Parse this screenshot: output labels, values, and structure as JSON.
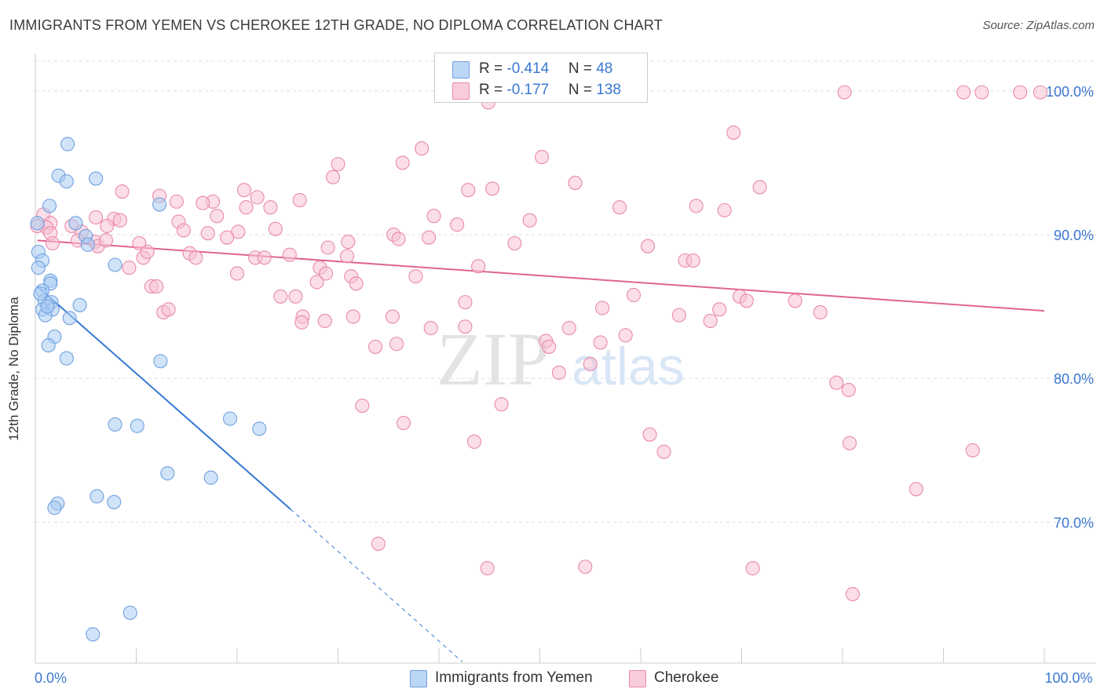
{
  "header": {
    "title": "IMMIGRANTS FROM YEMEN VS CHEROKEE 12TH GRADE, NO DIPLOMA CORRELATION CHART",
    "source": "Source: ZipAtlas.com"
  },
  "watermark": {
    "zip": "ZIP",
    "atlas": "atlas"
  },
  "legend": {
    "series1": {
      "r_label": "R = ",
      "r_value": "-0.414",
      "n_label": "N = ",
      "n_value": "48"
    },
    "series2": {
      "r_label": "R = ",
      "r_value": "-0.177",
      "n_label": "N = ",
      "n_value": "138"
    }
  },
  "colors": {
    "blue_fill": "#aaccf2",
    "blue_stroke": "#6fa0df",
    "blue_line": "#3579d3",
    "pink_fill": "#f8c3d4",
    "pink_stroke": "#e98aaa",
    "pink_line": "#e0658f",
    "axis_label": "#3b78d0",
    "grid": "#dddddd"
  },
  "chart_data": {
    "type": "scatter",
    "xlabel": "",
    "ylabel": "12th Grade, No Diploma",
    "xlim": [
      0,
      100
    ],
    "ylim": [
      60.2,
      102.5
    ],
    "x_tick_labels": [
      {
        "x": 0,
        "label": "0.0%"
      },
      {
        "x": 100,
        "label": "100.0%"
      }
    ],
    "y_tick_labels": [
      {
        "y": 70,
        "label": "70.0%"
      },
      {
        "y": 80,
        "label": "80.0%"
      },
      {
        "y": 90,
        "label": "90.0%"
      },
      {
        "y": 100,
        "label": "100.0%"
      }
    ],
    "series": [
      {
        "name": "Immigrants from Yemen",
        "color": "#6fa0df",
        "trend": {
          "x": [
            0.2,
            25.3
          ],
          "y": [
            86.4,
            70.9
          ]
        },
        "trend_dashed": {
          "x": [
            25.3,
            42.3
          ],
          "y": [
            70.9,
            60.3
          ]
        },
        "points": [
          [
            3.2,
            96.3
          ],
          [
            2.3,
            94.1
          ],
          [
            3.1,
            93.7
          ],
          [
            6.0,
            93.9
          ],
          [
            1.4,
            92.0
          ],
          [
            12.3,
            92.1
          ],
          [
            4.0,
            90.8
          ],
          [
            0.2,
            90.8
          ],
          [
            5.0,
            89.9
          ],
          [
            5.2,
            89.3
          ],
          [
            0.3,
            88.8
          ],
          [
            0.7,
            88.2
          ],
          [
            0.3,
            87.7
          ],
          [
            7.9,
            87.9
          ],
          [
            1.5,
            86.8
          ],
          [
            1.5,
            86.6
          ],
          [
            0.7,
            86.1
          ],
          [
            0.9,
            85.4
          ],
          [
            1.6,
            85.3
          ],
          [
            4.4,
            85.1
          ],
          [
            0.7,
            84.8
          ],
          [
            1.7,
            84.8
          ],
          [
            1.0,
            84.4
          ],
          [
            3.4,
            84.2
          ],
          [
            1.9,
            82.9
          ],
          [
            1.3,
            82.3
          ],
          [
            3.1,
            81.4
          ],
          [
            12.4,
            81.2
          ],
          [
            19.3,
            77.2
          ],
          [
            7.9,
            76.8
          ],
          [
            10.1,
            76.7
          ],
          [
            22.2,
            76.5
          ],
          [
            13.1,
            73.4
          ],
          [
            17.4,
            73.1
          ],
          [
            6.1,
            71.8
          ],
          [
            7.8,
            71.4
          ],
          [
            2.2,
            71.3
          ],
          [
            1.9,
            71.0
          ],
          [
            9.4,
            63.7
          ],
          [
            5.7,
            62.2
          ],
          [
            0.5,
            85.9
          ],
          [
            1.2,
            85.0
          ]
        ]
      },
      {
        "name": "Cherokee",
        "color": "#e98aaa",
        "trend": {
          "x": [
            0.2,
            100
          ],
          "y": [
            89.6,
            84.7
          ]
        },
        "points": [
          [
            46.7,
            99.9
          ],
          [
            49.2,
            99.9
          ],
          [
            53.9,
            99.9
          ],
          [
            80.2,
            99.9
          ],
          [
            92.0,
            99.9
          ],
          [
            93.8,
            99.9
          ],
          [
            97.6,
            99.9
          ],
          [
            99.6,
            99.9
          ],
          [
            69.2,
            97.1
          ],
          [
            38.3,
            96.0
          ],
          [
            50.2,
            95.4
          ],
          [
            36.4,
            95.0
          ],
          [
            30.0,
            94.9
          ],
          [
            29.5,
            94.0
          ],
          [
            53.5,
            93.6
          ],
          [
            71.8,
            93.3
          ],
          [
            45.3,
            93.2
          ],
          [
            42.9,
            93.1
          ],
          [
            8.6,
            93.0
          ],
          [
            20.7,
            93.1
          ],
          [
            12.3,
            92.7
          ],
          [
            17.6,
            92.3
          ],
          [
            22.0,
            92.6
          ],
          [
            26.2,
            92.4
          ],
          [
            14.0,
            92.3
          ],
          [
            16.6,
            92.2
          ],
          [
            20.9,
            91.9
          ],
          [
            23.3,
            91.9
          ],
          [
            57.9,
            91.9
          ],
          [
            65.5,
            92.0
          ],
          [
            68.3,
            91.7
          ],
          [
            0.8,
            91.4
          ],
          [
            6.0,
            91.2
          ],
          [
            7.8,
            91.1
          ],
          [
            8.4,
            91.0
          ],
          [
            14.2,
            90.9
          ],
          [
            18.0,
            91.3
          ],
          [
            39.5,
            91.3
          ],
          [
            49.0,
            91.0
          ],
          [
            41.8,
            90.7
          ],
          [
            1.5,
            90.8
          ],
          [
            1.1,
            90.5
          ],
          [
            3.6,
            90.6
          ],
          [
            7.1,
            90.6
          ],
          [
            0.2,
            90.6
          ],
          [
            1.5,
            90.1
          ],
          [
            4.6,
            90.2
          ],
          [
            14.7,
            90.3
          ],
          [
            17.1,
            90.1
          ],
          [
            20.1,
            90.2
          ],
          [
            23.8,
            90.4
          ],
          [
            35.5,
            90.0
          ],
          [
            39.0,
            89.8
          ],
          [
            4.2,
            89.6
          ],
          [
            5.9,
            89.5
          ],
          [
            1.7,
            89.4
          ],
          [
            6.2,
            89.2
          ],
          [
            7.0,
            89.6
          ],
          [
            10.3,
            89.4
          ],
          [
            19.0,
            89.8
          ],
          [
            31.0,
            89.5
          ],
          [
            47.5,
            89.4
          ],
          [
            29.0,
            89.1
          ],
          [
            36.0,
            89.7
          ],
          [
            60.7,
            89.2
          ],
          [
            10.7,
            88.4
          ],
          [
            11.1,
            88.8
          ],
          [
            15.3,
            88.7
          ],
          [
            15.9,
            88.4
          ],
          [
            21.8,
            88.4
          ],
          [
            25.2,
            88.6
          ],
          [
            30.9,
            88.5
          ],
          [
            22.7,
            88.4
          ],
          [
            64.4,
            88.2
          ],
          [
            65.2,
            88.2
          ],
          [
            9.3,
            87.7
          ],
          [
            28.2,
            87.7
          ],
          [
            28.8,
            87.3
          ],
          [
            31.3,
            87.1
          ],
          [
            37.7,
            87.1
          ],
          [
            43.9,
            87.8
          ],
          [
            20.0,
            87.3
          ],
          [
            31.8,
            86.6
          ],
          [
            27.9,
            86.7
          ],
          [
            11.5,
            86.4
          ],
          [
            12.0,
            86.4
          ],
          [
            24.3,
            85.7
          ],
          [
            25.8,
            85.7
          ],
          [
            42.6,
            85.3
          ],
          [
            59.3,
            85.8
          ],
          [
            69.8,
            85.7
          ],
          [
            70.5,
            85.4
          ],
          [
            75.3,
            85.4
          ],
          [
            12.7,
            84.6
          ],
          [
            13.2,
            84.8
          ],
          [
            26.5,
            84.3
          ],
          [
            28.7,
            84.0
          ],
          [
            26.4,
            83.9
          ],
          [
            31.5,
            84.3
          ],
          [
            35.4,
            84.3
          ],
          [
            56.2,
            84.9
          ],
          [
            63.8,
            84.4
          ],
          [
            66.9,
            84.0
          ],
          [
            67.8,
            84.8
          ],
          [
            77.8,
            84.6
          ],
          [
            39.2,
            83.5
          ],
          [
            42.6,
            83.6
          ],
          [
            52.9,
            83.5
          ],
          [
            58.5,
            83.0
          ],
          [
            33.7,
            82.2
          ],
          [
            35.8,
            82.4
          ],
          [
            50.6,
            82.6
          ],
          [
            50.9,
            82.2
          ],
          [
            56.0,
            82.5
          ],
          [
            55.0,
            81.0
          ],
          [
            51.9,
            80.4
          ],
          [
            79.4,
            79.7
          ],
          [
            80.6,
            79.2
          ],
          [
            32.4,
            78.1
          ],
          [
            46.2,
            78.2
          ],
          [
            36.5,
            76.9
          ],
          [
            60.9,
            76.1
          ],
          [
            43.5,
            75.6
          ],
          [
            80.7,
            75.5
          ],
          [
            62.3,
            74.9
          ],
          [
            92.9,
            75.0
          ],
          [
            87.3,
            72.3
          ],
          [
            34.0,
            68.5
          ],
          [
            44.8,
            66.8
          ],
          [
            54.5,
            66.9
          ],
          [
            71.1,
            66.8
          ],
          [
            81.0,
            65.0
          ],
          [
            44.9,
            99.2
          ],
          [
            52.5,
            99.8
          ]
        ]
      }
    ]
  },
  "bottom_legend": {
    "item1": "Immigrants from Yemen",
    "item2": "Cherokee"
  }
}
